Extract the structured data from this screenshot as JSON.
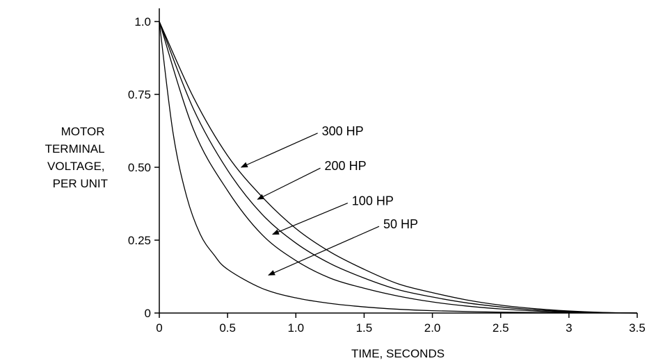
{
  "chart_data": {
    "type": "line",
    "xlabel": "TIME, SECONDS",
    "ylabel": [
      "MOTOR",
      "TERMINAL",
      "VOLTAGE,",
      "PER UNIT"
    ],
    "xlim": [
      0,
      3.5
    ],
    "ylim": [
      0,
      1.0
    ],
    "x_ticks": [
      {
        "value": 0,
        "label": "0"
      },
      {
        "value": 0.5,
        "label": "0.5"
      },
      {
        "value": 1.0,
        "label": "1.0"
      },
      {
        "value": 1.5,
        "label": "1.5"
      },
      {
        "value": 2.0,
        "label": "2.0"
      },
      {
        "value": 2.5,
        "label": "2.5"
      },
      {
        "value": 3.0,
        "label": "3"
      },
      {
        "value": 3.5,
        "label": "3.5"
      }
    ],
    "y_ticks": [
      {
        "value": 0,
        "label": "0"
      },
      {
        "value": 0.25,
        "label": "0.25"
      },
      {
        "value": 0.5,
        "label": "0.50"
      },
      {
        "value": 0.75,
        "label": "0.75"
      },
      {
        "value": 1.0,
        "label": "1.0"
      }
    ],
    "grid": false,
    "series": [
      {
        "name": "300 HP",
        "x": [
          0,
          0.25,
          0.5,
          0.75,
          1.0,
          1.25,
          1.5,
          1.75,
          2.0,
          2.25,
          2.5,
          2.75,
          3.0,
          3.25,
          3.5
        ],
        "y": [
          1.0,
          0.74,
          0.54,
          0.4,
          0.29,
          0.21,
          0.15,
          0.1,
          0.07,
          0.045,
          0.027,
          0.015,
          0.007,
          0.002,
          0.0
        ],
        "label_point": {
          "x": 0.6,
          "y": 0.5
        },
        "label_text_at": {
          "x": 1.18,
          "y": 0.61
        }
      },
      {
        "name": "200 HP",
        "x": [
          0,
          0.25,
          0.5,
          0.75,
          1.0,
          1.25,
          1.5,
          1.75,
          2.0,
          2.25,
          2.5,
          2.75,
          3.0,
          3.25,
          3.5
        ],
        "y": [
          1.0,
          0.7,
          0.49,
          0.34,
          0.24,
          0.17,
          0.12,
          0.08,
          0.055,
          0.035,
          0.021,
          0.011,
          0.005,
          0.0015,
          0.0
        ],
        "label_point": {
          "x": 0.72,
          "y": 0.39
        },
        "label_text_at": {
          "x": 1.2,
          "y": 0.49
        }
      },
      {
        "name": "100 HP",
        "x": [
          0,
          0.25,
          0.5,
          0.75,
          1.0,
          1.25,
          1.5,
          1.75,
          2.0,
          2.25,
          2.5,
          2.75,
          3.0,
          3.25,
          3.5
        ],
        "y": [
          1.0,
          0.63,
          0.42,
          0.27,
          0.18,
          0.12,
          0.085,
          0.058,
          0.038,
          0.024,
          0.014,
          0.007,
          0.003,
          0.001,
          0.0
        ],
        "label_point": {
          "x": 0.83,
          "y": 0.27
        },
        "label_text_at": {
          "x": 1.4,
          "y": 0.37
        }
      },
      {
        "name": "50 HP",
        "x": [
          0,
          0.1,
          0.2,
          0.3,
          0.4,
          0.5,
          0.75,
          1.0,
          1.25,
          1.5,
          1.75,
          2.0,
          2.5,
          3.0,
          3.5
        ],
        "y": [
          1.0,
          0.62,
          0.4,
          0.27,
          0.2,
          0.15,
          0.085,
          0.052,
          0.033,
          0.021,
          0.013,
          0.008,
          0.003,
          0.001,
          0.0
        ],
        "label_point": {
          "x": 0.8,
          "y": 0.13
        },
        "label_text_at": {
          "x": 1.63,
          "y": 0.29
        }
      }
    ]
  }
}
